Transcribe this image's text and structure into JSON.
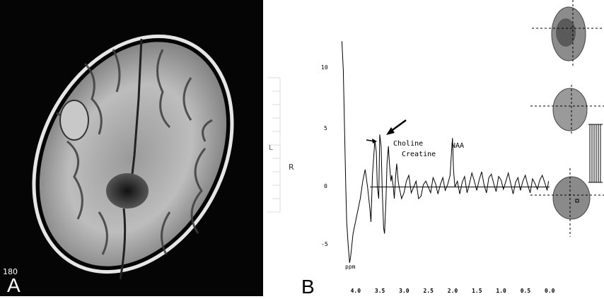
{
  "panel_a": {
    "label": "A",
    "corner_text": "180",
    "side_marker": "R",
    "side_tick": "L"
  },
  "panel_b": {
    "label": "B",
    "annotations": {
      "choline": "Choline",
      "creatine": "Creatine",
      "naa": "NAA",
      "ppm": "ppm"
    },
    "y_ticks": [
      "10",
      "5",
      "0",
      "-5"
    ],
    "x_ticks": [
      "4.0",
      "3.5",
      "3.0",
      "2.5",
      "2.0",
      "1.5",
      "1.0",
      "0.5",
      "0.0"
    ]
  },
  "chart_data": {
    "type": "line",
    "title": "",
    "xlabel": "",
    "ylabel": "",
    "x_reversed": true,
    "xlim": [
      4.3,
      0.0
    ],
    "ylim": [
      -7,
      13
    ],
    "x": [
      4.28,
      4.25,
      4.22,
      4.2,
      4.18,
      4.15,
      4.12,
      4.1,
      4.05,
      4.0,
      3.95,
      3.9,
      3.85,
      3.8,
      3.75,
      3.7,
      3.68,
      3.65,
      3.6,
      3.57,
      3.55,
      3.52,
      3.5,
      3.47,
      3.45,
      3.42,
      3.4,
      3.37,
      3.35,
      3.32,
      3.3,
      3.27,
      3.25,
      3.22,
      3.2,
      3.17,
      3.15,
      3.12,
      3.1,
      3.05,
      3.0,
      2.95,
      2.9,
      2.85,
      2.8,
      2.75,
      2.7,
      2.65,
      2.6,
      2.55,
      2.5,
      2.45,
      2.4,
      2.35,
      2.3,
      2.25,
      2.2,
      2.15,
      2.1,
      2.05,
      2.02,
      2.0,
      1.98,
      1.95,
      1.9,
      1.85,
      1.8,
      1.75,
      1.7,
      1.65,
      1.6,
      1.55,
      1.5,
      1.45,
      1.4,
      1.35,
      1.3,
      1.25,
      1.2,
      1.15,
      1.1,
      1.05,
      1.0,
      0.95,
      0.9,
      0.85,
      0.8,
      0.75,
      0.7,
      0.65,
      0.6,
      0.55,
      0.5,
      0.45,
      0.4,
      0.35,
      0.3,
      0.25,
      0.2,
      0.15,
      0.1,
      0.05,
      0.02
    ],
    "y": [
      12.5,
      10,
      4,
      0,
      -3,
      -5,
      -6.5,
      -6,
      -4,
      -3,
      -2,
      -1,
      0.5,
      1.5,
      0,
      -2,
      -3,
      1,
      4,
      3,
      0,
      -1,
      4.5,
      3.5,
      0,
      -3.5,
      -4,
      -1,
      2,
      3.5,
      2,
      0.5,
      1,
      0,
      -1,
      1,
      2,
      0.5,
      0,
      -1,
      -0.5,
      0.5,
      1,
      -0.5,
      0,
      0.5,
      -1,
      -0.8,
      0.2,
      0.5,
      0,
      -0.5,
      0.8,
      0.3,
      -0.6,
      0.2,
      0.8,
      -0.3,
      0.2,
      1,
      3,
      4.2,
      1.5,
      0,
      0.5,
      -0.6,
      0.4,
      0.9,
      -0.5,
      0.3,
      1.2,
      0.5,
      -0.3,
      0.6,
      1.3,
      0.2,
      -0.5,
      0.8,
      1.1,
      0.3,
      -0.4,
      0.9,
      0.6,
      -0.2,
      0.5,
      1.2,
      0.3,
      -0.6,
      0.4,
      0.8,
      -0.3,
      0.5,
      1,
      0.2,
      -0.5,
      0.7,
      0.3,
      -0.2,
      0.6,
      1,
      0.4,
      -0.3,
      0.5
    ],
    "baseline": 0,
    "baseline_from_x": 3.7
  }
}
